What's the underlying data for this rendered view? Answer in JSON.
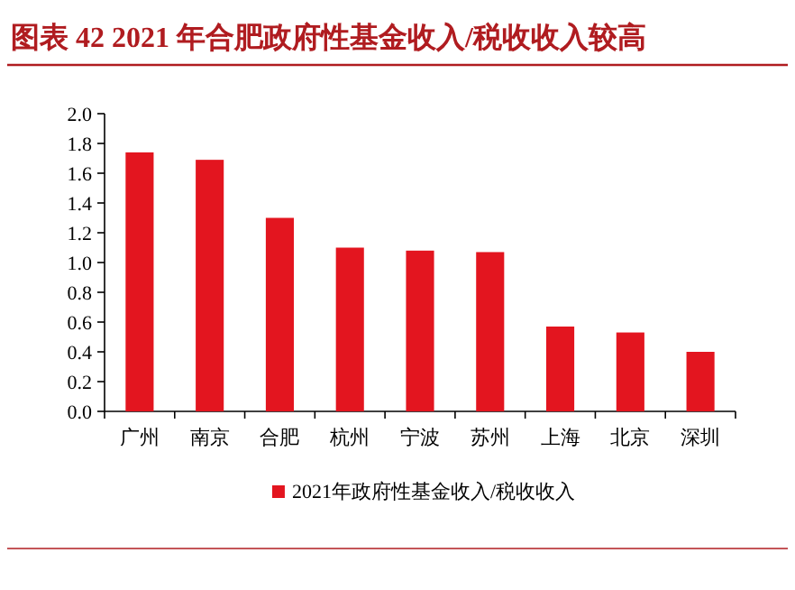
{
  "chart_data": {
    "type": "bar",
    "title": "图表 42  2021 年合肥政府性基金收入/税收收入较高",
    "categories": [
      "广州",
      "南京",
      "合肥",
      "杭州",
      "宁波",
      "苏州",
      "上海",
      "北京",
      "深圳"
    ],
    "series": [
      {
        "name": "2021年政府性基金收入/税收收入",
        "color": "#e3151f",
        "values": [
          1.74,
          1.69,
          1.3,
          1.1,
          1.08,
          1.07,
          0.57,
          0.53,
          0.4
        ]
      }
    ],
    "ylim": [
      0,
      2.0
    ],
    "yticks": [
      {
        "value": 0,
        "label": "0.0"
      },
      {
        "value": 0.2,
        "label": "0.2"
      },
      {
        "value": 0.4,
        "label": "0.4"
      },
      {
        "value": 0.6,
        "label": "0.6"
      },
      {
        "value": 0.8,
        "label": "0.8"
      },
      {
        "value": 1.0,
        "label": "1.0"
      },
      {
        "value": 1.2,
        "label": "1.2"
      },
      {
        "value": 1.4,
        "label": "1.4"
      },
      {
        "value": 1.6,
        "label": "1.6"
      },
      {
        "value": 1.8,
        "label": "1.8"
      },
      {
        "value": 2.0,
        "label": "2.0"
      }
    ],
    "legend": "bottom"
  }
}
